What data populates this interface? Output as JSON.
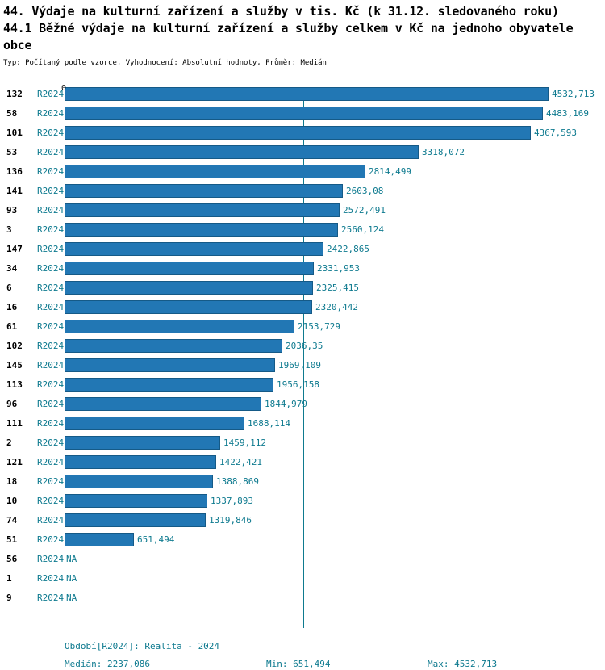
{
  "header": {
    "title_line1": "44. Výdaje na kulturní zařízení a služby v tis. Kč (k 31.12. sledovaného roku)",
    "title_line2": "44.1 Běžné výdaje na kulturní zařízení a služby celkem v Kč na jednoho obyvatele obce",
    "subtitle": "Typ: Počítaný podle vzorce, Vyhodnocení: Absolutní hodnoty, Průměr: Medián"
  },
  "chart_data": {
    "type": "bar",
    "orientation": "horizontal",
    "axis_zero_label": "0",
    "period_label": "R2024",
    "xlim": [
      0,
      4532.713
    ],
    "median": 2237.086,
    "rows": [
      {
        "id": "132",
        "value": 4532.713,
        "display": "4532,713"
      },
      {
        "id": "58",
        "value": 4483.169,
        "display": "4483,169"
      },
      {
        "id": "101",
        "value": 4367.593,
        "display": "4367,593"
      },
      {
        "id": "53",
        "value": 3318.072,
        "display": "3318,072"
      },
      {
        "id": "136",
        "value": 2814.499,
        "display": "2814,499"
      },
      {
        "id": "141",
        "value": 2603.08,
        "display": "2603,08"
      },
      {
        "id": "93",
        "value": 2572.491,
        "display": "2572,491"
      },
      {
        "id": "3",
        "value": 2560.124,
        "display": "2560,124"
      },
      {
        "id": "147",
        "value": 2422.865,
        "display": "2422,865"
      },
      {
        "id": "34",
        "value": 2331.953,
        "display": "2331,953"
      },
      {
        "id": "6",
        "value": 2325.415,
        "display": "2325,415"
      },
      {
        "id": "16",
        "value": 2320.442,
        "display": "2320,442"
      },
      {
        "id": "61",
        "value": 2153.729,
        "display": "2153,729"
      },
      {
        "id": "102",
        "value": 2036.35,
        "display": "2036,35"
      },
      {
        "id": "145",
        "value": 1969.109,
        "display": "1969,109"
      },
      {
        "id": "113",
        "value": 1956.158,
        "display": "1956,158"
      },
      {
        "id": "96",
        "value": 1844.979,
        "display": "1844,979"
      },
      {
        "id": "111",
        "value": 1688.114,
        "display": "1688,114"
      },
      {
        "id": "2",
        "value": 1459.112,
        "display": "1459,112"
      },
      {
        "id": "121",
        "value": 1422.421,
        "display": "1422,421"
      },
      {
        "id": "18",
        "value": 1388.869,
        "display": "1388,869"
      },
      {
        "id": "10",
        "value": 1337.893,
        "display": "1337,893"
      },
      {
        "id": "74",
        "value": 1319.846,
        "display": "1319,846"
      },
      {
        "id": "51",
        "value": 651.494,
        "display": "651,494"
      },
      {
        "id": "56",
        "value": null,
        "display": "NA"
      },
      {
        "id": "1",
        "value": null,
        "display": "NA"
      },
      {
        "id": "9",
        "value": null,
        "display": "NA"
      }
    ]
  },
  "footer": {
    "period": "Období[R2024]: Realita - 2024",
    "median": "Medián: 2237,086",
    "min": "Min: 651,494",
    "max": "Max: 4532,713"
  },
  "colors": {
    "bar": "#2277b4",
    "bar_border": "#155a87",
    "teal": "#0e7a8f",
    "text": "#000000"
  }
}
